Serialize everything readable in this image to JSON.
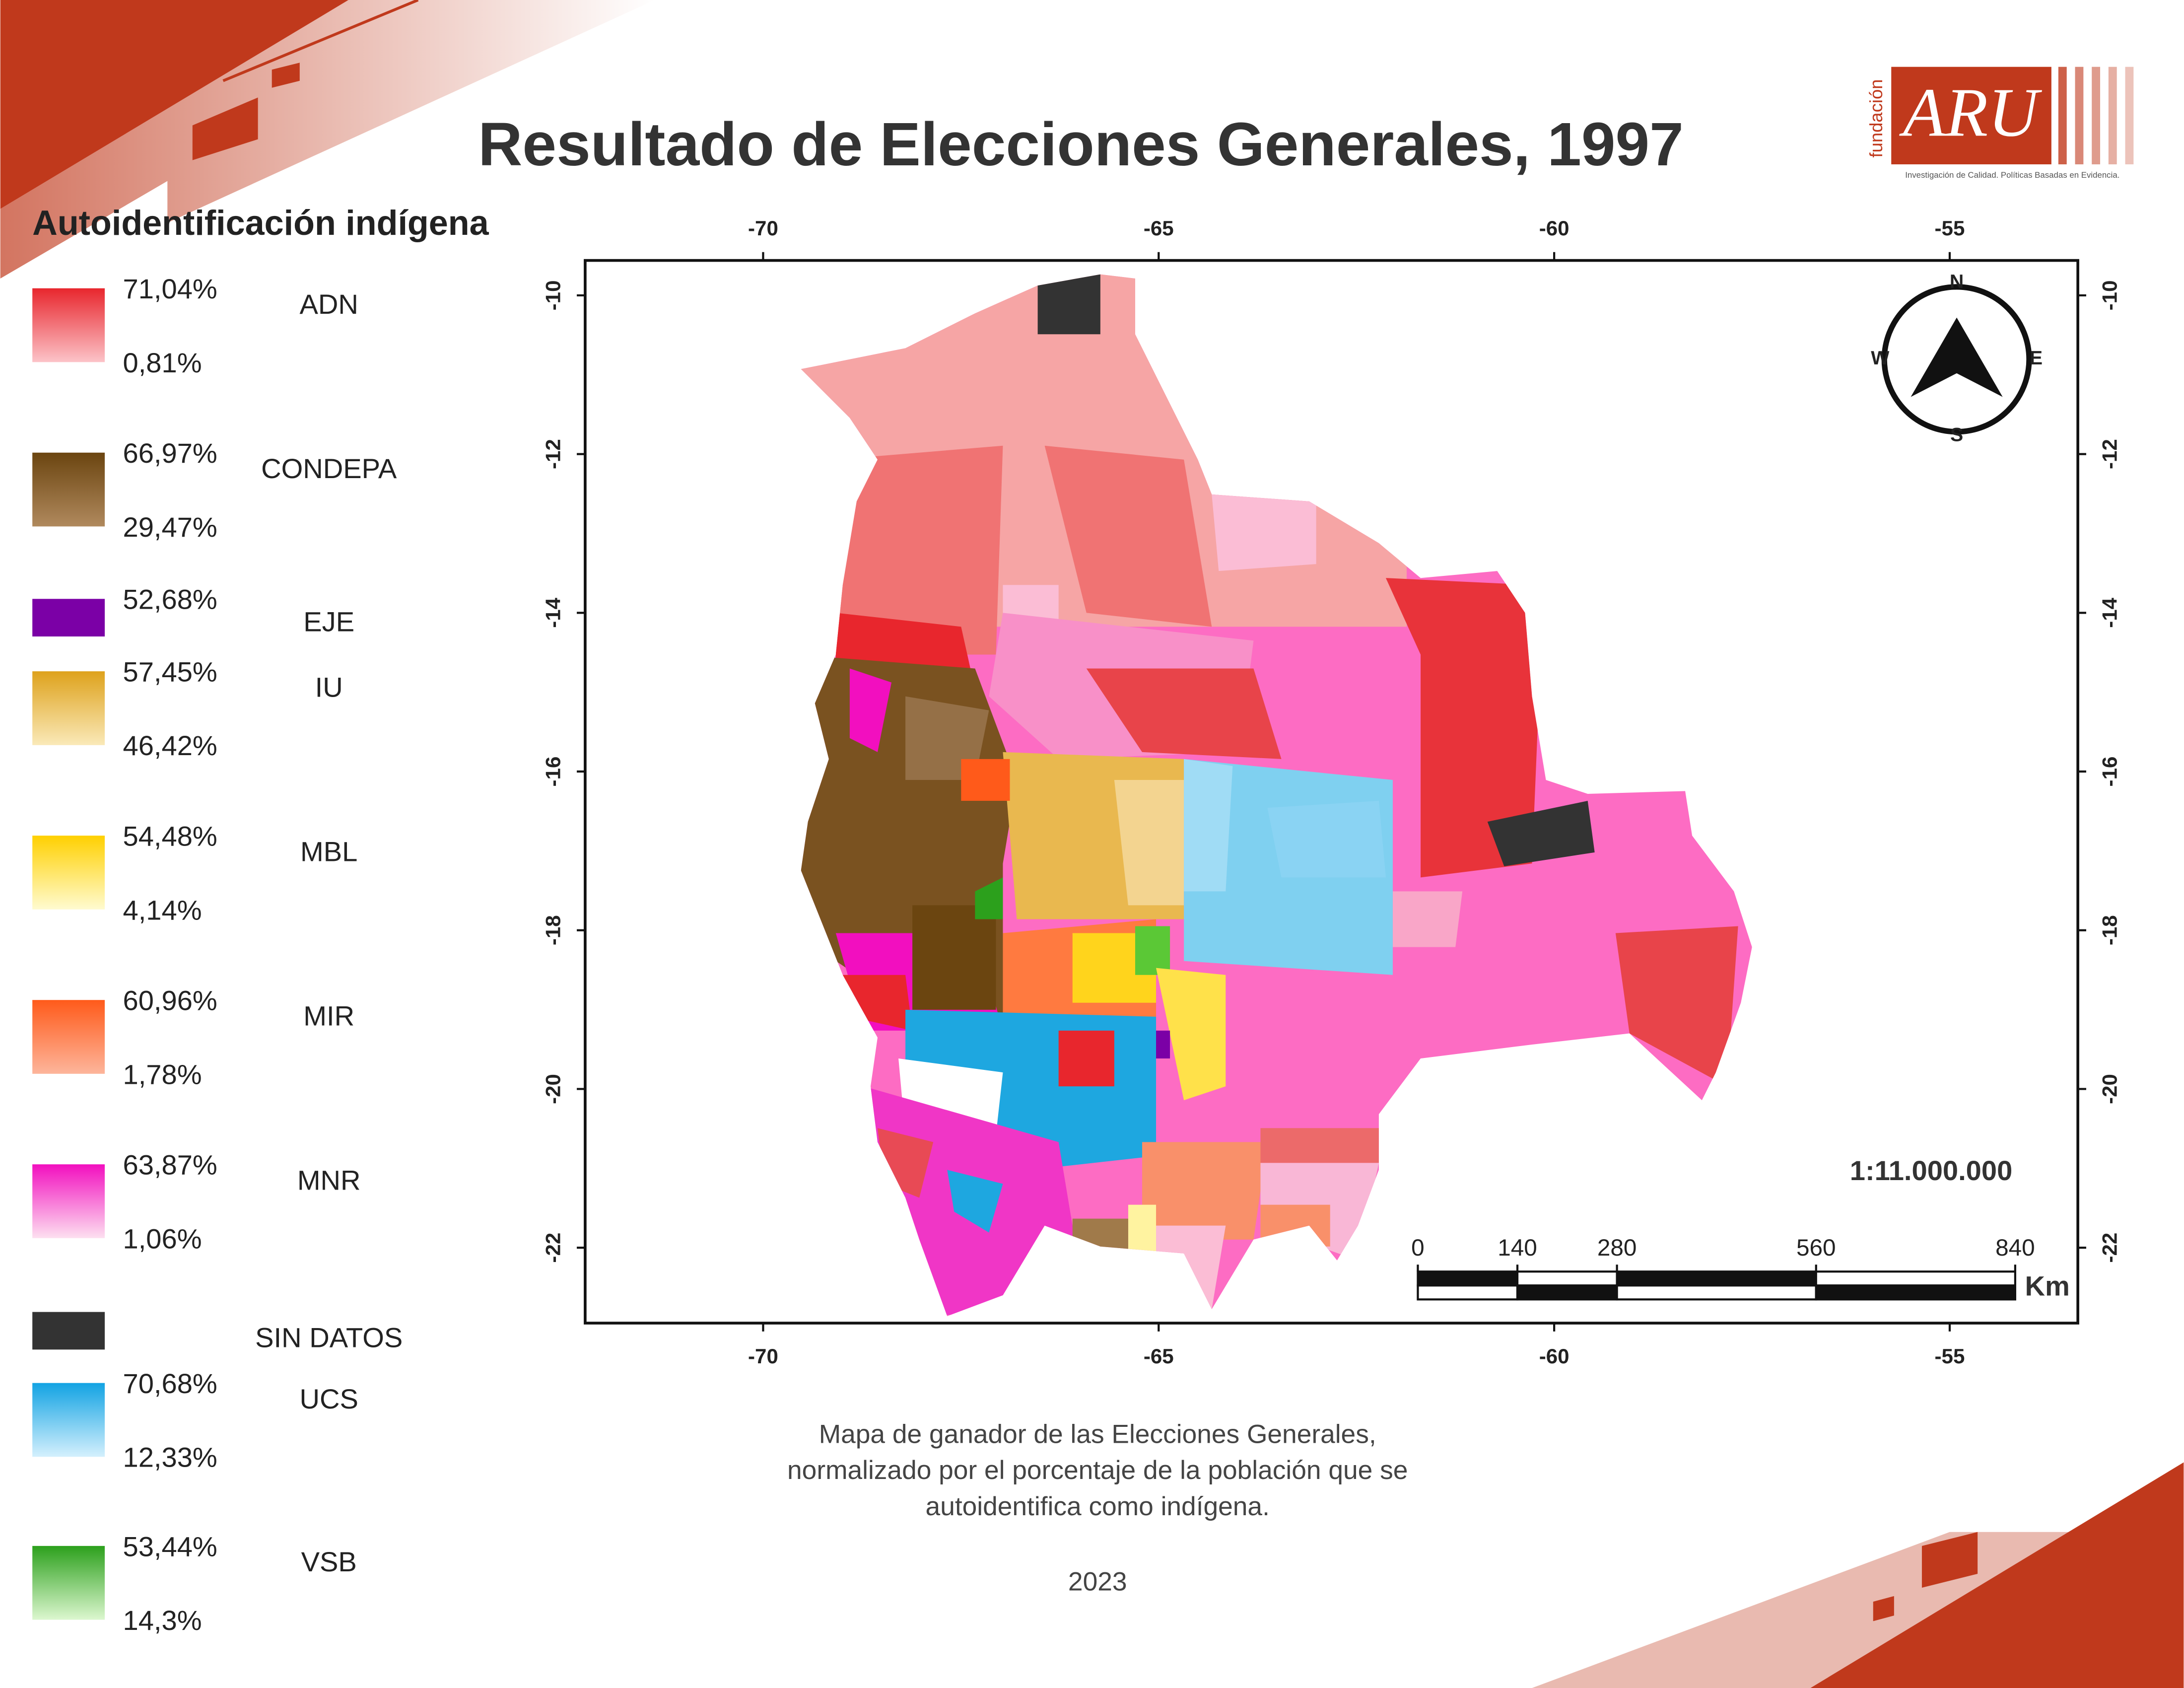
{
  "header": {
    "title": "Resultado de Elecciones Generales, 1997"
  },
  "logo": {
    "vertical": "fundación",
    "brand": "ARU",
    "tagline": "Investigación de Calidad. Políticas Basadas en Evidencia."
  },
  "legend": {
    "title": "Autoidentificación indígena",
    "items": [
      {
        "name": "ADN",
        "max": "71,04%",
        "min": "0,81%",
        "color_top": "#e8262d",
        "color_bottom": "#fcc3c8"
      },
      {
        "name": "CONDEPA",
        "max": "66,97%",
        "min": "29,47%",
        "color_top": "#6b4510",
        "color_bottom": "#b0895d"
      },
      {
        "name": "EJE",
        "max": "52,68%",
        "color_top": "#7b00a6",
        "color_bottom": "#7b00a6"
      },
      {
        "name": "IU",
        "max": "57,45%",
        "min": "46,42%",
        "color_top": "#dea21c",
        "color_bottom": "#fae9b8"
      },
      {
        "name": "MBL",
        "max": "54,48%",
        "min": "4,14%",
        "color_top": "#ffd000",
        "color_bottom": "#fffbd0"
      },
      {
        "name": "MIR",
        "max": "60,96%",
        "min": "1,78%",
        "color_top": "#ff5a1a",
        "color_bottom": "#fdb59b"
      },
      {
        "name": "MNR",
        "max": "63,87%",
        "min": "1,06%",
        "color_top": "#f20fbf",
        "color_bottom": "#fde0f0"
      },
      {
        "name": "SIN DATOS",
        "color_top": "#333333",
        "color_bottom": "#333333"
      },
      {
        "name": "UCS",
        "max": "70,68%",
        "min": "12,33%",
        "color_top": "#12a3e3",
        "color_bottom": "#d4f0fd"
      },
      {
        "name": "VSB",
        "max": "53,44%",
        "min": "14,3%",
        "color_top": "#2ca01c",
        "color_bottom": "#dcf7cf"
      }
    ]
  },
  "map": {
    "lon_range": [
      -72.25,
      -53.38
    ],
    "lat_range": [
      -9.56,
      -22.95
    ],
    "lon_ticks": [
      -70,
      -65,
      -60,
      -55
    ],
    "lat_ticks": [
      -10,
      -12,
      -14,
      -16,
      -18,
      -20,
      -22
    ],
    "compass": {
      "n": "N",
      "e": "E",
      "s": "S",
      "w": "W"
    },
    "scale_ratio": "1:11.000.000",
    "scale_bar": {
      "ticks": [
        0,
        140,
        280,
        560,
        840
      ],
      "unit": "Km"
    }
  },
  "caption": {
    "lines": [
      "Mapa de ganador de las Elecciones Generales,",
      "normalizado por el porcentaje de la población que se",
      "autoidentifica como indígena."
    ],
    "year": "2023"
  }
}
